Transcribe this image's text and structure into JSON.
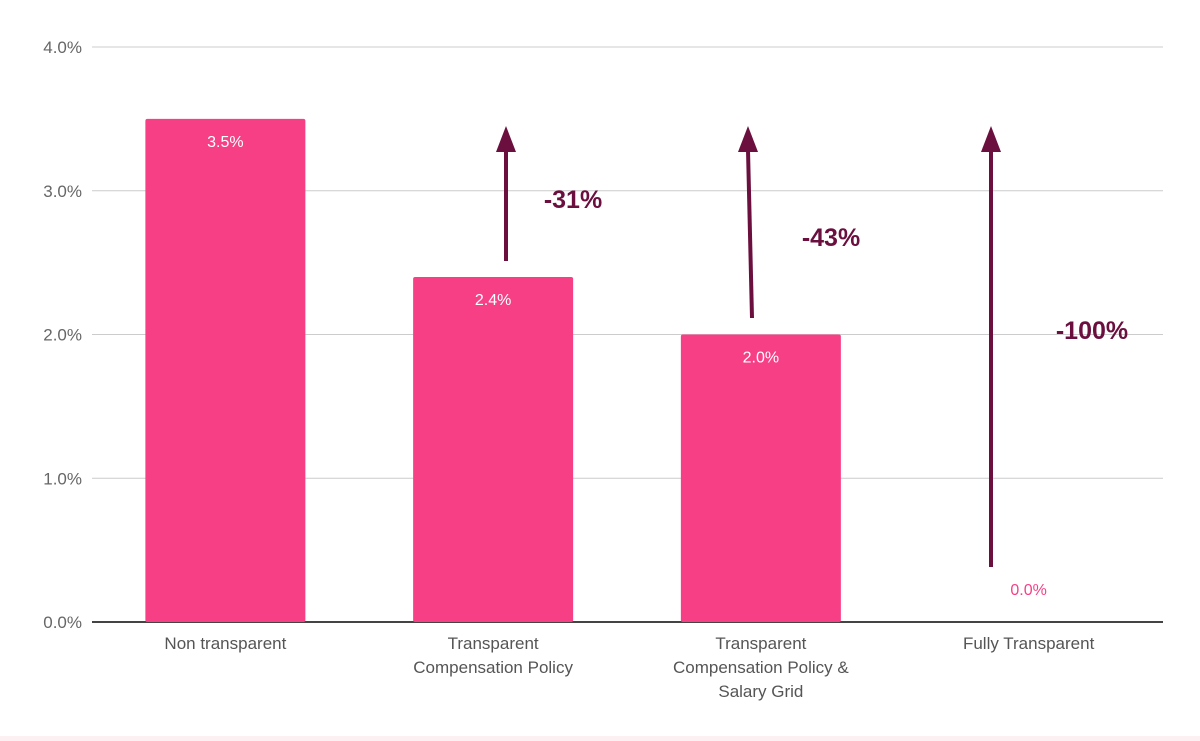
{
  "chart_data": {
    "type": "bar",
    "title": "",
    "xlabel": "",
    "ylabel": "",
    "ylim": [
      0,
      4
    ],
    "yticks": [
      "0.0%",
      "1.0%",
      "2.0%",
      "3.0%",
      "4.0%"
    ],
    "grid": true,
    "categories": [
      [
        "Non transparent"
      ],
      [
        "Transparent",
        "Compensation Policy"
      ],
      [
        "Transparent",
        "Compensation Policy &",
        "Salary Grid"
      ],
      [
        "Fully Transparent"
      ]
    ],
    "values": [
      3.5,
      2.4,
      2.0,
      0.0
    ],
    "data_labels": [
      "3.5%",
      "2.4%",
      "2.0%",
      "0.0%"
    ],
    "annotations": [
      {
        "category_index": 1,
        "text": "-31%"
      },
      {
        "category_index": 2,
        "text": "-43%"
      },
      {
        "category_index": 3,
        "text": "-100%"
      }
    ],
    "colors": {
      "bar": "#f73f86",
      "label_inside": "#ffffff",
      "label_zero": "#f73f86",
      "arrow": "#6b0f3f",
      "grid": "#cccccc",
      "axis": "#444444"
    }
  }
}
